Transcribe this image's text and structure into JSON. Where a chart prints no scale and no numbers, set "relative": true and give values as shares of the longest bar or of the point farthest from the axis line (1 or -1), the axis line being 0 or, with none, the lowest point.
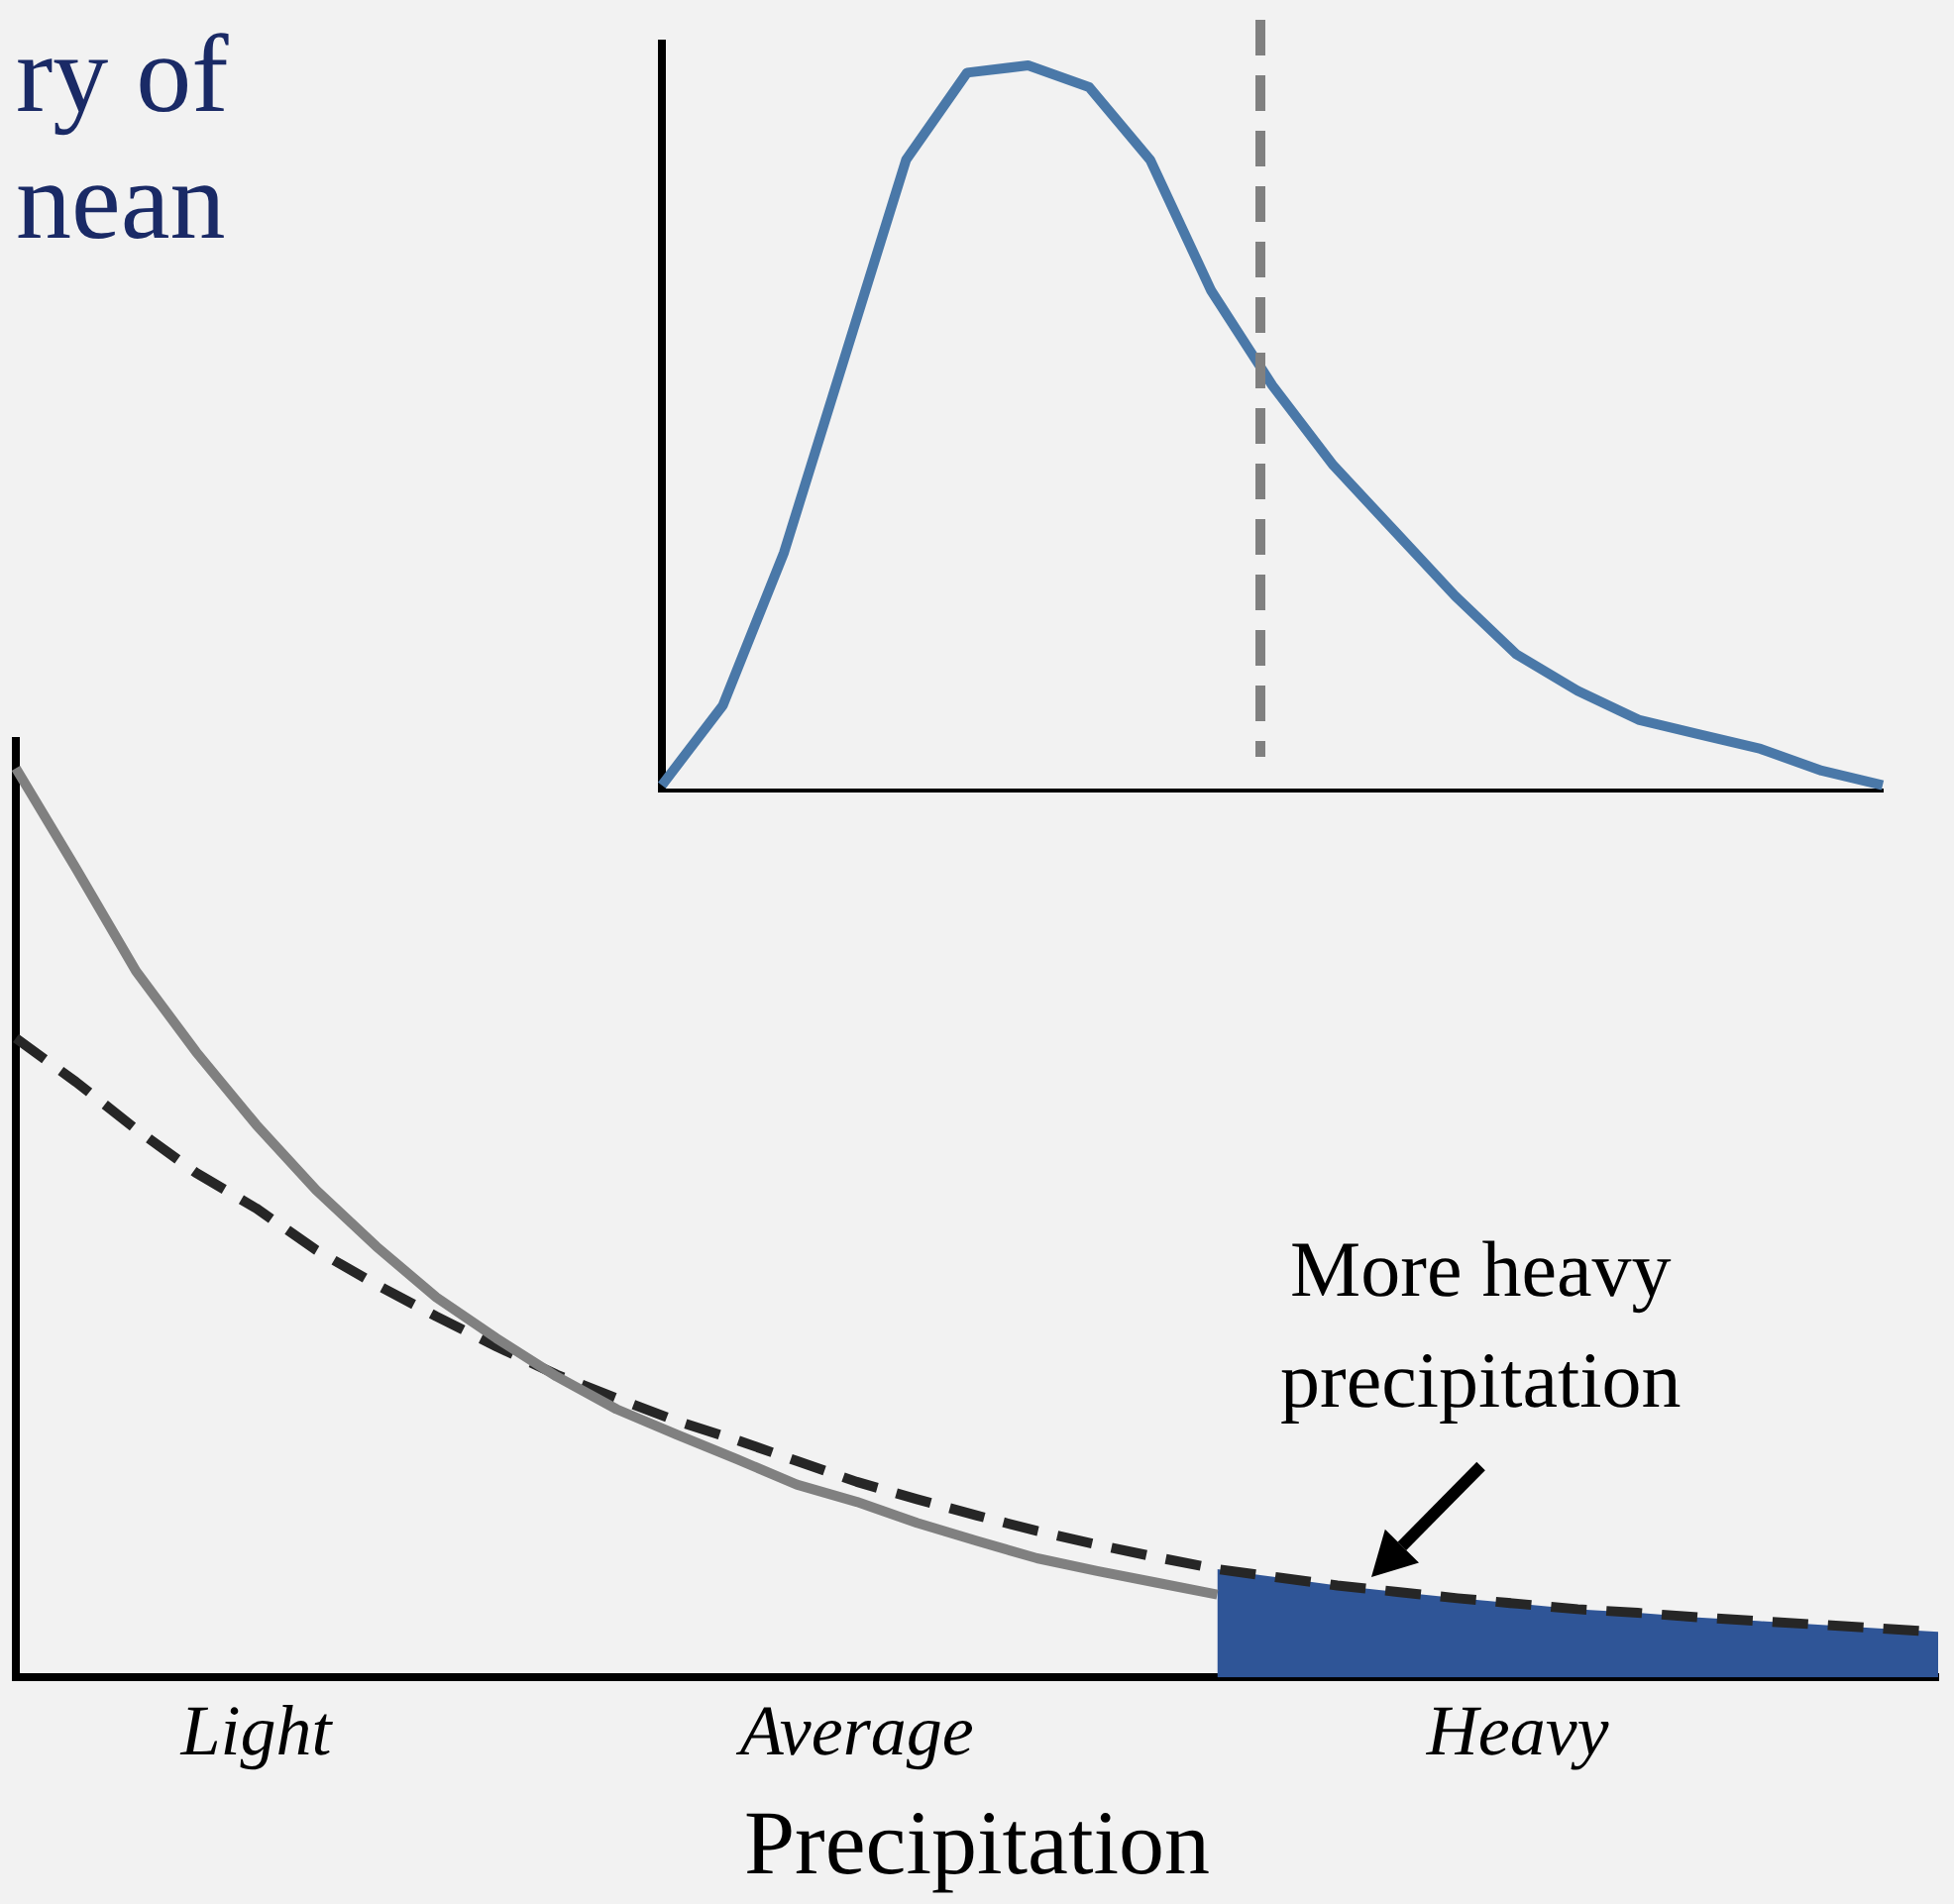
{
  "chart_data": [
    {
      "type": "line",
      "title": "ry of\nnean",
      "relative": true,
      "tick_labels": false,
      "grid": false,
      "legend": false,
      "marker": "none",
      "categories": [
        null,
        null,
        null,
        null,
        null,
        null,
        null,
        null,
        null,
        null,
        null,
        null,
        null,
        null,
        null,
        null,
        null,
        null,
        null,
        null,
        null
      ],
      "series": [
        {
          "color": "#4a78a8",
          "values": [
            0.01,
            0.12,
            0.33,
            0.6,
            0.87,
            0.99,
            1.0,
            0.97,
            0.87,
            0.69,
            0.56,
            0.45,
            0.36,
            0.27,
            0.19,
            0.14,
            0.1,
            0.08,
            0.06,
            0.03,
            0.01
          ]
        }
      ]
    },
    {
      "type": "line",
      "relative": true,
      "xlabel": "Precipitation",
      "grid": false,
      "legend": false,
      "marker": "none",
      "tick_labels": "x",
      "categories": [
        null,
        null,
        null,
        null,
        "Light",
        null,
        null,
        null,
        null,
        null,
        null,
        null,
        null,
        null,
        "Average",
        null,
        null,
        null,
        null,
        null,
        null,
        null,
        null,
        null,
        null,
        "Heavy",
        null,
        null,
        null,
        null,
        null,
        null,
        null
      ],
      "series": [
        {
          "type": "area",
          "color": "#2f5597",
          "values": [
            null,
            null,
            null,
            null,
            null,
            null,
            null,
            null,
            null,
            null,
            null,
            null,
            null,
            null,
            null,
            null,
            null,
            null,
            null,
            null,
            0.119,
            0.11,
            0.101,
            0.094,
            0.087,
            0.081,
            0.075,
            0.071,
            0.066,
            0.062,
            0.058,
            0.054,
            0.05
          ]
        },
        {
          "color": "#808080",
          "line_style": "solid",
          "values": [
            1.0,
            0.89,
            0.777,
            0.688,
            0.608,
            0.536,
            0.474,
            0.418,
            0.373,
            0.331,
            0.295,
            0.267,
            0.24,
            0.212,
            0.193,
            0.17,
            0.15,
            0.131,
            0.117,
            0.104,
            0.091,
            null,
            null,
            null,
            null,
            null,
            null,
            null,
            null,
            null,
            null,
            null,
            null
          ]
        },
        {
          "color": "#262626",
          "line_style": "dashed",
          "values": [
            0.703,
            0.655,
            0.603,
            0.555,
            0.516,
            0.47,
            0.432,
            0.397,
            0.364,
            0.333,
            0.307,
            0.282,
            0.261,
            0.238,
            0.215,
            0.196,
            0.178,
            0.161,
            0.146,
            0.132,
            0.119,
            0.11,
            0.101,
            0.094,
            0.087,
            0.081,
            0.075,
            0.071,
            0.066,
            0.062,
            0.058,
            0.054,
            0.05
          ]
        }
      ],
      "annotations": [
        "More heavy precipitation"
      ]
    }
  ]
}
